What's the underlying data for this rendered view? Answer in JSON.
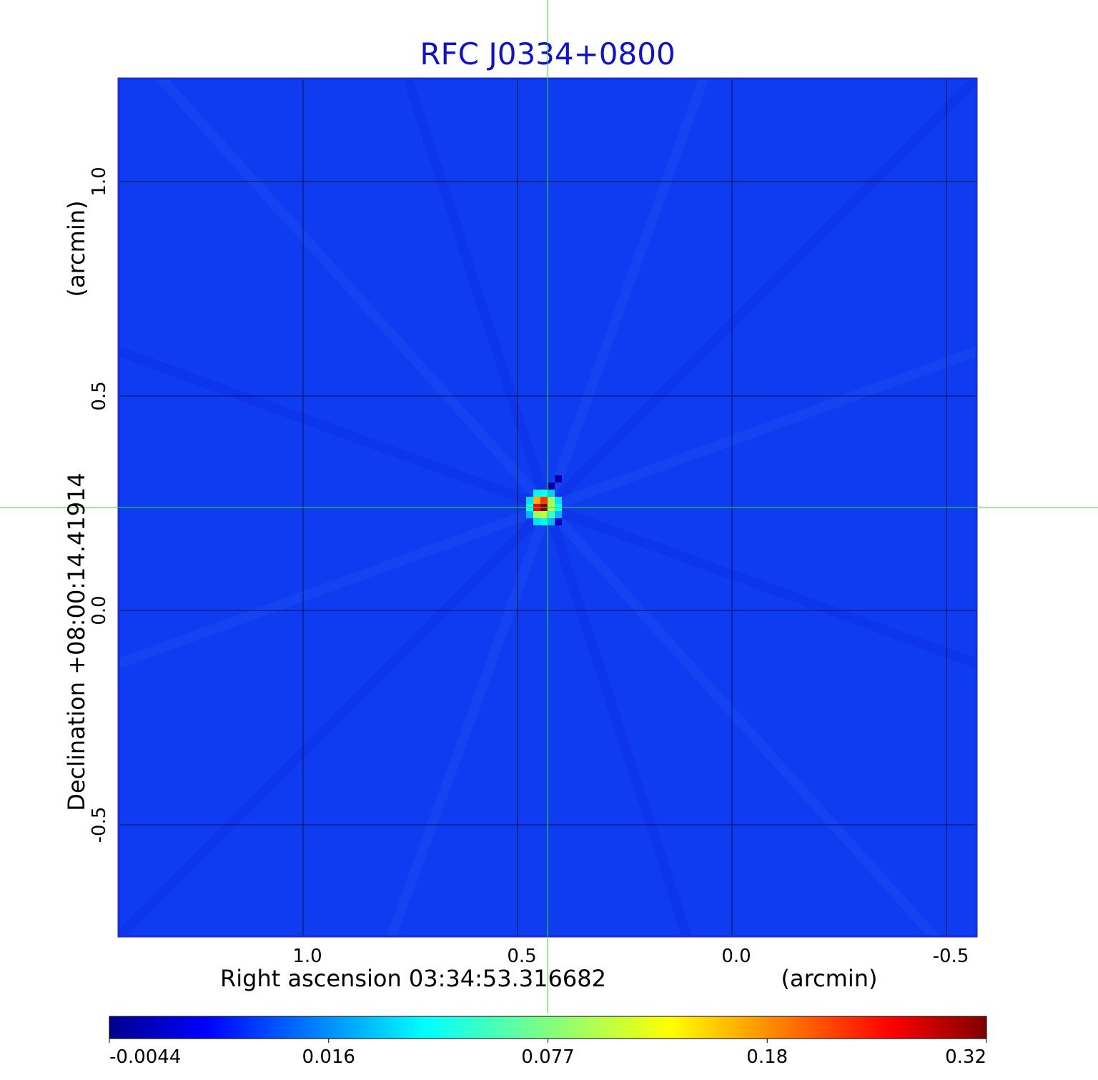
{
  "chart_data": {
    "type": "heatmap",
    "title": "RFC J0334+0800",
    "xlabel": "Right ascension  03:34:53.316682",
    "xunit": "(arcmin)",
    "ylabel": "Declination  +08:00:14.41914",
    "yunit": "(arcmin)",
    "xlim": [
      1.43,
      -0.57
    ],
    "ylim": [
      -0.76,
      1.24
    ],
    "x_ticks": [
      "1.0",
      "0.5",
      "0.0",
      "-0.5"
    ],
    "x_tick_values": [
      1.0,
      0.5,
      0.0,
      -0.5
    ],
    "y_ticks": [
      "1.0",
      "0.5",
      "0.0",
      "-0.5"
    ],
    "y_tick_values": [
      1.0,
      0.5,
      0.0,
      -0.5
    ],
    "grid": true,
    "crosshair": {
      "x": 0.43,
      "y": 0.24,
      "color": "#33dd33"
    },
    "source": {
      "x": 0.43,
      "y": 0.24,
      "peak": 0.32,
      "pixels": [
        {
          "dx": 0,
          "dy": 0,
          "value": 0.32
        },
        {
          "dx": -1,
          "dy": 0,
          "value": 0.25
        },
        {
          "dx": 0,
          "dy": 1,
          "value": 0.22
        },
        {
          "dx": -1,
          "dy": 1,
          "value": 0.16
        },
        {
          "dx": 1,
          "dy": 0,
          "value": 0.1
        },
        {
          "dx": 1,
          "dy": 1,
          "value": 0.09
        },
        {
          "dx": -1,
          "dy": -1,
          "value": 0.09
        },
        {
          "dx": 0,
          "dy": -1,
          "value": 0.1
        },
        {
          "dx": 1,
          "dy": -1,
          "value": 0.06
        },
        {
          "dx": -2,
          "dy": 0,
          "value": 0.05
        },
        {
          "dx": -2,
          "dy": 1,
          "value": 0.04
        },
        {
          "dx": 2,
          "dy": 0,
          "value": 0.05
        },
        {
          "dx": 2,
          "dy": 1,
          "value": 0.04
        },
        {
          "dx": 0,
          "dy": 2,
          "value": 0.05
        },
        {
          "dx": -1,
          "dy": 2,
          "value": 0.045
        },
        {
          "dx": 1,
          "dy": 2,
          "value": 0.035
        },
        {
          "dx": 0,
          "dy": -2,
          "value": 0.045
        },
        {
          "dx": -1,
          "dy": -2,
          "value": 0.04
        },
        {
          "dx": 1,
          "dy": -2,
          "value": 0.03
        },
        {
          "dx": 2,
          "dy": -1,
          "value": 0.03
        },
        {
          "dx": -2,
          "dy": -1,
          "value": 0.03
        },
        {
          "dx": 2,
          "dy": -2,
          "value": 0.001
        },
        {
          "dx": 1,
          "dy": 3,
          "value": -0.002
        },
        {
          "dx": 2,
          "dy": 4,
          "value": -0.002
        }
      ]
    },
    "background_value": 0.004,
    "colormap": "jet",
    "colorbar": {
      "ticks": [
        "-0.0044",
        "0.016",
        "0.077",
        "0.18",
        "0.32"
      ],
      "tick_values": [
        -0.0044,
        0.016,
        0.077,
        0.18,
        0.32
      ],
      "orientation": "horizontal"
    }
  }
}
